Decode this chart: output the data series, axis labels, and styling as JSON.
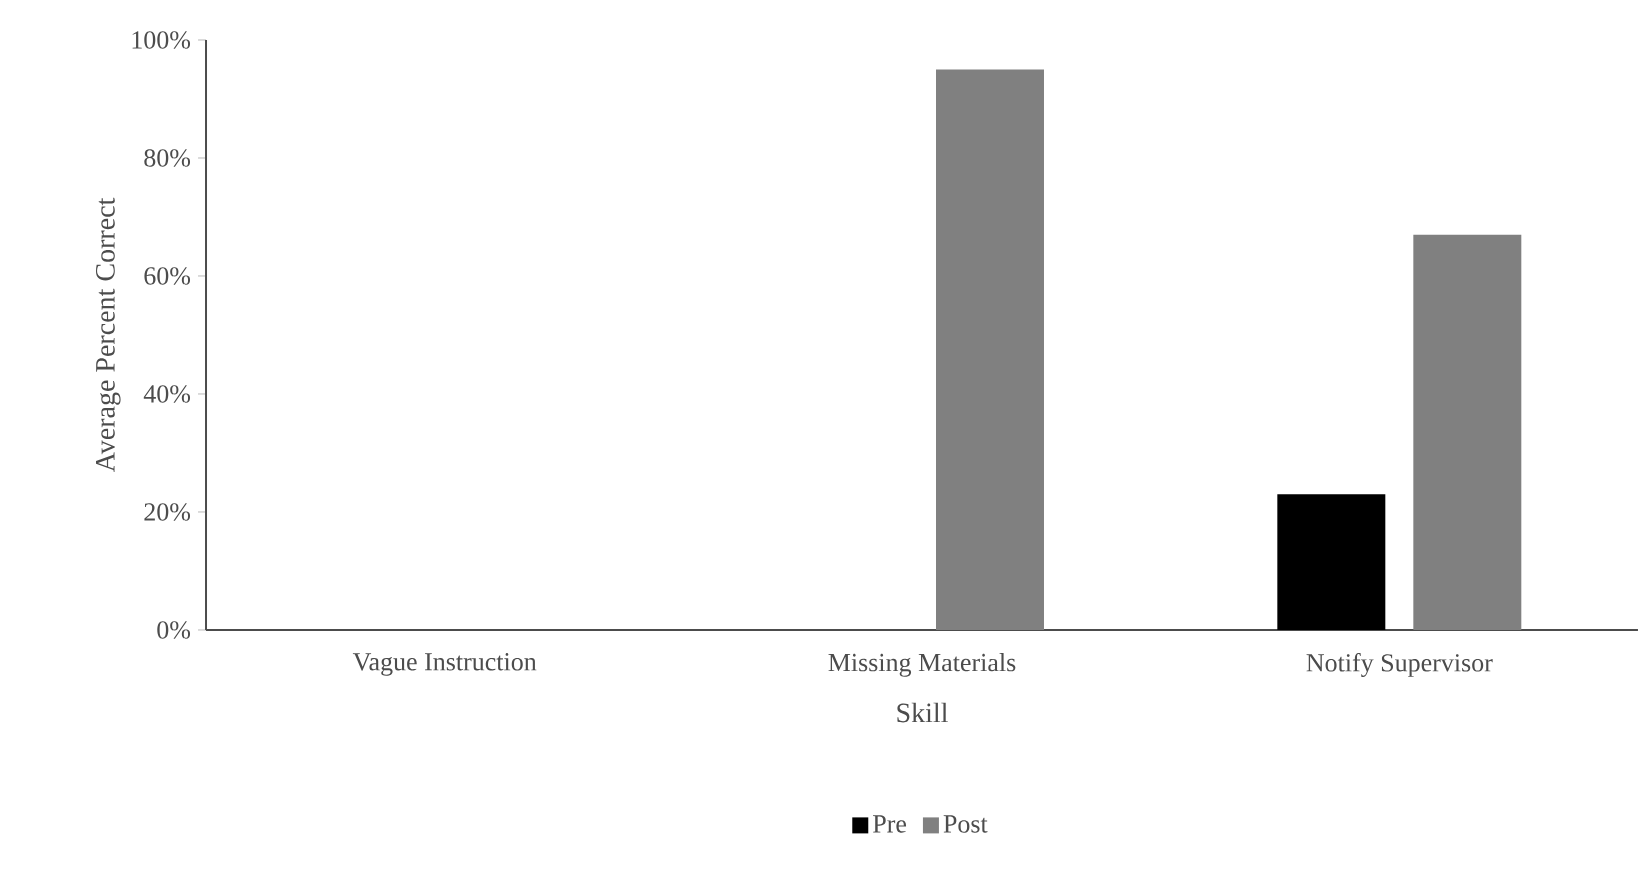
{
  "chart_data": {
    "type": "bar",
    "xlabel": "Skill",
    "ylabel": "Average Percent Correct",
    "categories": [
      "Vague Instruction",
      "Missing Materials",
      "Notify Supervisor"
    ],
    "series": [
      {
        "name": "Pre",
        "color": "#000000",
        "values": [
          0,
          0,
          23
        ]
      },
      {
        "name": "Post",
        "color": "#808080",
        "values": [
          0,
          95,
          67
        ]
      }
    ],
    "ylim": [
      0,
      100
    ],
    "yticks": [
      {
        "value": 0,
        "label": "0%"
      },
      {
        "value": 20,
        "label": "20%"
      },
      {
        "value": 40,
        "label": "40%"
      },
      {
        "value": 60,
        "label": "60%"
      },
      {
        "value": 80,
        "label": "80%"
      },
      {
        "value": 100,
        "label": "100%"
      }
    ],
    "grid": false,
    "legend": "bottom"
  }
}
